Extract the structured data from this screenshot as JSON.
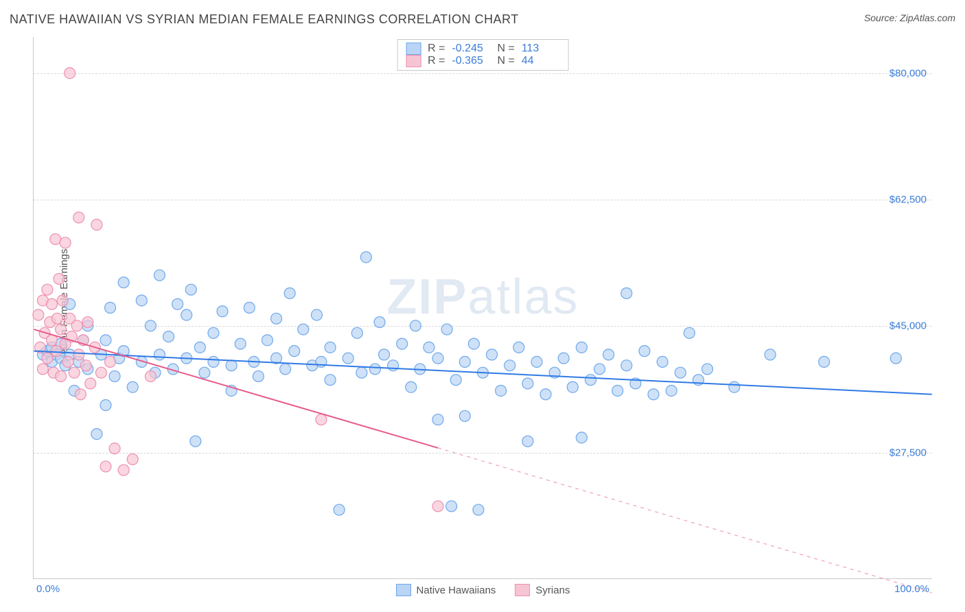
{
  "header": {
    "title": "NATIVE HAWAIIAN VS SYRIAN MEDIAN FEMALE EARNINGS CORRELATION CHART",
    "source_prefix": "Source: ",
    "source_name": "ZipAtlas.com"
  },
  "chart": {
    "type": "scatter",
    "watermark": {
      "bold": "ZIP",
      "rest": "atlas"
    },
    "background_color": "#ffffff",
    "grid_color": "#d8d8d8",
    "axis_color": "#c9c9c9",
    "x": {
      "min": 0.0,
      "max": 100.0,
      "tick_min_label": "0.0%",
      "tick_max_label": "100.0%",
      "tick_color": "#3b7dd8"
    },
    "y": {
      "label": "Median Female Earnings",
      "min": 10000,
      "max": 85000,
      "ticks": [
        {
          "v": 27500,
          "label": "$27,500"
        },
        {
          "v": 45000,
          "label": "$45,000"
        },
        {
          "v": 62500,
          "label": "$62,500"
        },
        {
          "v": 80000,
          "label": "$80,000"
        }
      ],
      "tick_color": "#3b7dd8",
      "label_color": "#555555"
    },
    "legend_top": {
      "rows": [
        {
          "swatch_fill": "#b9d4f4",
          "swatch_stroke": "#6ea8ec",
          "r_label": "R =",
          "r": "-0.245",
          "n_label": "N =",
          "n": "113"
        },
        {
          "swatch_fill": "#f6c4d3",
          "swatch_stroke": "#ee8fb0",
          "r_label": "R =",
          "r": "-0.365",
          "n_label": "N =",
          "n": "44"
        }
      ]
    },
    "legend_bottom": [
      {
        "swatch_fill": "#b9d4f4",
        "swatch_stroke": "#6ea8ec",
        "label": "Native Hawaiians"
      },
      {
        "swatch_fill": "#f6c4d3",
        "swatch_stroke": "#ee8fb0",
        "label": "Syrians"
      }
    ],
    "series": [
      {
        "name": "Native Hawaiians",
        "marker": {
          "r": 8,
          "fill": "#b9d4f4",
          "fill_opacity": 0.7,
          "stroke": "#6ea8ec",
          "stroke_width": 1.2
        },
        "trend": {
          "stroke": "#2f7ae5",
          "width": 2,
          "y0": 41500,
          "y100": 35500,
          "x_solid_end": 100
        },
        "points": [
          [
            1,
            41000
          ],
          [
            1.5,
            41500
          ],
          [
            2,
            40000
          ],
          [
            2,
            42000
          ],
          [
            2.5,
            41000
          ],
          [
            3,
            40500
          ],
          [
            3,
            42500
          ],
          [
            3.5,
            39500
          ],
          [
            4,
            48000
          ],
          [
            4,
            41000
          ],
          [
            4.5,
            36000
          ],
          [
            5,
            40000
          ],
          [
            5.5,
            43000
          ],
          [
            6,
            39000
          ],
          [
            6,
            45000
          ],
          [
            7,
            30000
          ],
          [
            7.5,
            41000
          ],
          [
            8,
            43000
          ],
          [
            8,
            34000
          ],
          [
            8.5,
            47500
          ],
          [
            9,
            38000
          ],
          [
            9.5,
            40500
          ],
          [
            10,
            51000
          ],
          [
            10,
            41500
          ],
          [
            11,
            36500
          ],
          [
            12,
            48500
          ],
          [
            12,
            40000
          ],
          [
            13,
            45000
          ],
          [
            13.5,
            38500
          ],
          [
            14,
            52000
          ],
          [
            14,
            41000
          ],
          [
            15,
            43500
          ],
          [
            15.5,
            39000
          ],
          [
            16,
            48000
          ],
          [
            17,
            40500
          ],
          [
            17,
            46500
          ],
          [
            17.5,
            50000
          ],
          [
            18,
            29000
          ],
          [
            18.5,
            42000
          ],
          [
            19,
            38500
          ],
          [
            20,
            44000
          ],
          [
            20,
            40000
          ],
          [
            21,
            47000
          ],
          [
            22,
            39500
          ],
          [
            22,
            36000
          ],
          [
            23,
            42500
          ],
          [
            24,
            47500
          ],
          [
            24.5,
            40000
          ],
          [
            25,
            38000
          ],
          [
            26,
            43000
          ],
          [
            27,
            40500
          ],
          [
            27,
            46000
          ],
          [
            28,
            39000
          ],
          [
            28.5,
            49500
          ],
          [
            29,
            41500
          ],
          [
            30,
            44500
          ],
          [
            31,
            39500
          ],
          [
            31.5,
            46500
          ],
          [
            32,
            40000
          ],
          [
            33,
            42000
          ],
          [
            33,
            37500
          ],
          [
            34,
            19500
          ],
          [
            35,
            40500
          ],
          [
            36,
            44000
          ],
          [
            36.5,
            38500
          ],
          [
            37,
            54500
          ],
          [
            38,
            39000
          ],
          [
            38.5,
            45500
          ],
          [
            39,
            41000
          ],
          [
            40,
            39500
          ],
          [
            41,
            42500
          ],
          [
            42,
            36500
          ],
          [
            42.5,
            45000
          ],
          [
            43,
            39000
          ],
          [
            44,
            42000
          ],
          [
            45,
            40500
          ],
          [
            45,
            32000
          ],
          [
            46,
            44500
          ],
          [
            46.5,
            20000
          ],
          [
            47,
            37500
          ],
          [
            48,
            40000
          ],
          [
            48,
            32500
          ],
          [
            49,
            42500
          ],
          [
            49.5,
            19500
          ],
          [
            50,
            38500
          ],
          [
            51,
            41000
          ],
          [
            52,
            36000
          ],
          [
            53,
            39500
          ],
          [
            54,
            42000
          ],
          [
            55,
            37000
          ],
          [
            55,
            29000
          ],
          [
            56,
            40000
          ],
          [
            57,
            35500
          ],
          [
            58,
            38500
          ],
          [
            59,
            40500
          ],
          [
            60,
            36500
          ],
          [
            61,
            42000
          ],
          [
            61,
            29500
          ],
          [
            62,
            37500
          ],
          [
            63,
            39000
          ],
          [
            64,
            41000
          ],
          [
            65,
            36000
          ],
          [
            66,
            39500
          ],
          [
            66,
            49500
          ],
          [
            67,
            37000
          ],
          [
            68,
            41500
          ],
          [
            69,
            35500
          ],
          [
            70,
            40000
          ],
          [
            71,
            36000
          ],
          [
            72,
            38500
          ],
          [
            73,
            44000
          ],
          [
            74,
            37500
          ],
          [
            75,
            39000
          ],
          [
            78,
            36500
          ],
          [
            82,
            41000
          ],
          [
            88,
            40000
          ],
          [
            96,
            40500
          ]
        ]
      },
      {
        "name": "Syrians",
        "marker": {
          "r": 8,
          "fill": "#f6c4d3",
          "fill_opacity": 0.7,
          "stroke": "#ee8fb0",
          "stroke_width": 1.2
        },
        "trend": {
          "stroke": "#e85b8a",
          "width": 2,
          "y0": 44500,
          "y100": 8000,
          "x_solid_end": 45
        },
        "points": [
          [
            0.5,
            46500
          ],
          [
            0.7,
            42000
          ],
          [
            1,
            48500
          ],
          [
            1,
            39000
          ],
          [
            1.2,
            44000
          ],
          [
            1.5,
            50000
          ],
          [
            1.5,
            40500
          ],
          [
            1.8,
            45500
          ],
          [
            2,
            43000
          ],
          [
            2,
            48000
          ],
          [
            2.2,
            38500
          ],
          [
            2.4,
            57000
          ],
          [
            2.5,
            41500
          ],
          [
            2.6,
            46000
          ],
          [
            2.8,
            51500
          ],
          [
            3,
            44500
          ],
          [
            3,
            38000
          ],
          [
            3.2,
            48500
          ],
          [
            3.5,
            42500
          ],
          [
            3.5,
            56500
          ],
          [
            3.8,
            40000
          ],
          [
            4,
            46000
          ],
          [
            4,
            80000
          ],
          [
            4.2,
            43500
          ],
          [
            4.5,
            38500
          ],
          [
            4.8,
            45000
          ],
          [
            5,
            41000
          ],
          [
            5,
            60000
          ],
          [
            5.2,
            35500
          ],
          [
            5.5,
            43000
          ],
          [
            5.8,
            39500
          ],
          [
            6,
            45500
          ],
          [
            6.3,
            37000
          ],
          [
            6.8,
            42000
          ],
          [
            7,
            59000
          ],
          [
            7.5,
            38500
          ],
          [
            8,
            25500
          ],
          [
            8.5,
            40000
          ],
          [
            9,
            28000
          ],
          [
            10,
            25000
          ],
          [
            11,
            26500
          ],
          [
            13,
            38000
          ],
          [
            32,
            32000
          ],
          [
            45,
            20000
          ]
        ]
      }
    ]
  }
}
